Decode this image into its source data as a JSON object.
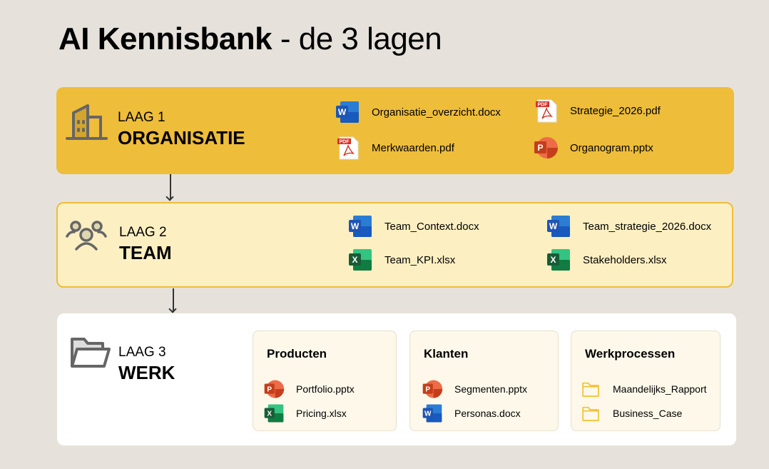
{
  "title": {
    "bold": "AI Kennisbank",
    "rest": " - de 3 lagen"
  },
  "layers": [
    {
      "number": "LAAG 1",
      "name": "ORGANISATIE",
      "icon": "building-icon",
      "files": [
        {
          "name": "Organisatie_overzicht.docx",
          "type": "word"
        },
        {
          "name": "Strategie_2026.pdf",
          "type": "pdf"
        },
        {
          "name": "Merkwaarden.pdf",
          "type": "pdf"
        },
        {
          "name": "Organogram.pptx",
          "type": "powerpoint"
        }
      ]
    },
    {
      "number": "LAAG 2",
      "name": "TEAM",
      "icon": "team-icon",
      "files": [
        {
          "name": "Team_Context.docx",
          "type": "word"
        },
        {
          "name": "Team_strategie_2026.docx",
          "type": "word"
        },
        {
          "name": "Team_KPI.xlsx",
          "type": "excel"
        },
        {
          "name": "Stakeholders.xlsx",
          "type": "excel"
        }
      ]
    },
    {
      "number": "LAAG 3",
      "name": "WERK",
      "icon": "folder-open-icon",
      "cards": [
        {
          "title": "Producten",
          "files": [
            {
              "name": "Portfolio.pptx",
              "type": "powerpoint"
            },
            {
              "name": "Pricing.xlsx",
              "type": "excel"
            }
          ]
        },
        {
          "title": "Klanten",
          "files": [
            {
              "name": "Segmenten.pptx",
              "type": "powerpoint"
            },
            {
              "name": "Personas.docx",
              "type": "word"
            }
          ]
        },
        {
          "title": "Werkprocessen",
          "files": [
            {
              "name": "Maandelijks_Rapport",
              "type": "folder"
            },
            {
              "name": "Business_Case",
              "type": "folder"
            }
          ]
        }
      ]
    }
  ],
  "colors": {
    "layer1": "#eebd3a",
    "layer2": "#fcefc2",
    "background": "#e6e2db"
  }
}
